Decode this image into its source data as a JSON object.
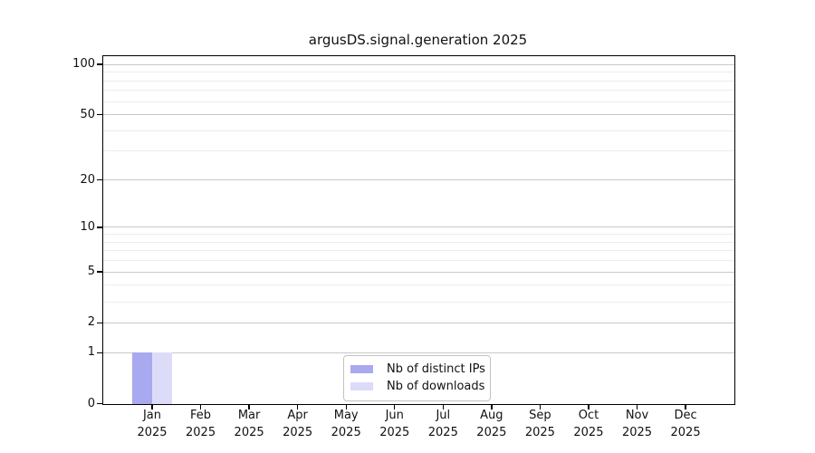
{
  "chart_data": {
    "type": "bar",
    "title": "argusDS.signal.generation 2025",
    "x_year": "2025",
    "categories": [
      "Jan",
      "Feb",
      "Mar",
      "Apr",
      "May",
      "Jun",
      "Jul",
      "Aug",
      "Sep",
      "Oct",
      "Nov",
      "Dec"
    ],
    "series": [
      {
        "name": "Nb of distinct IPs",
        "color": "#a9a9f0",
        "values": [
          1,
          0,
          0,
          0,
          0,
          0,
          0,
          0,
          0,
          0,
          0,
          0
        ]
      },
      {
        "name": "Nb of downloads",
        "color": "#dcdcf8",
        "values": [
          1,
          0,
          0,
          0,
          0,
          0,
          0,
          0,
          0,
          0,
          0,
          0
        ]
      }
    ],
    "y_scale": "symlog (position ~ log(1+value))",
    "y_major_ticks": [
      0,
      1,
      2,
      5,
      10,
      20,
      50,
      100
    ],
    "y_minor_gridlines": [
      3,
      4,
      6,
      7,
      8,
      9,
      30,
      40,
      60,
      70,
      80,
      90
    ],
    "ylim": [
      0,
      112
    ],
    "grid": true,
    "legend_position": "lower center"
  },
  "style": {
    "major_grid_color": "#c9c9c9",
    "minor_grid_color": "#ececec",
    "axis_color": "#000000",
    "text_color": "#111111"
  }
}
